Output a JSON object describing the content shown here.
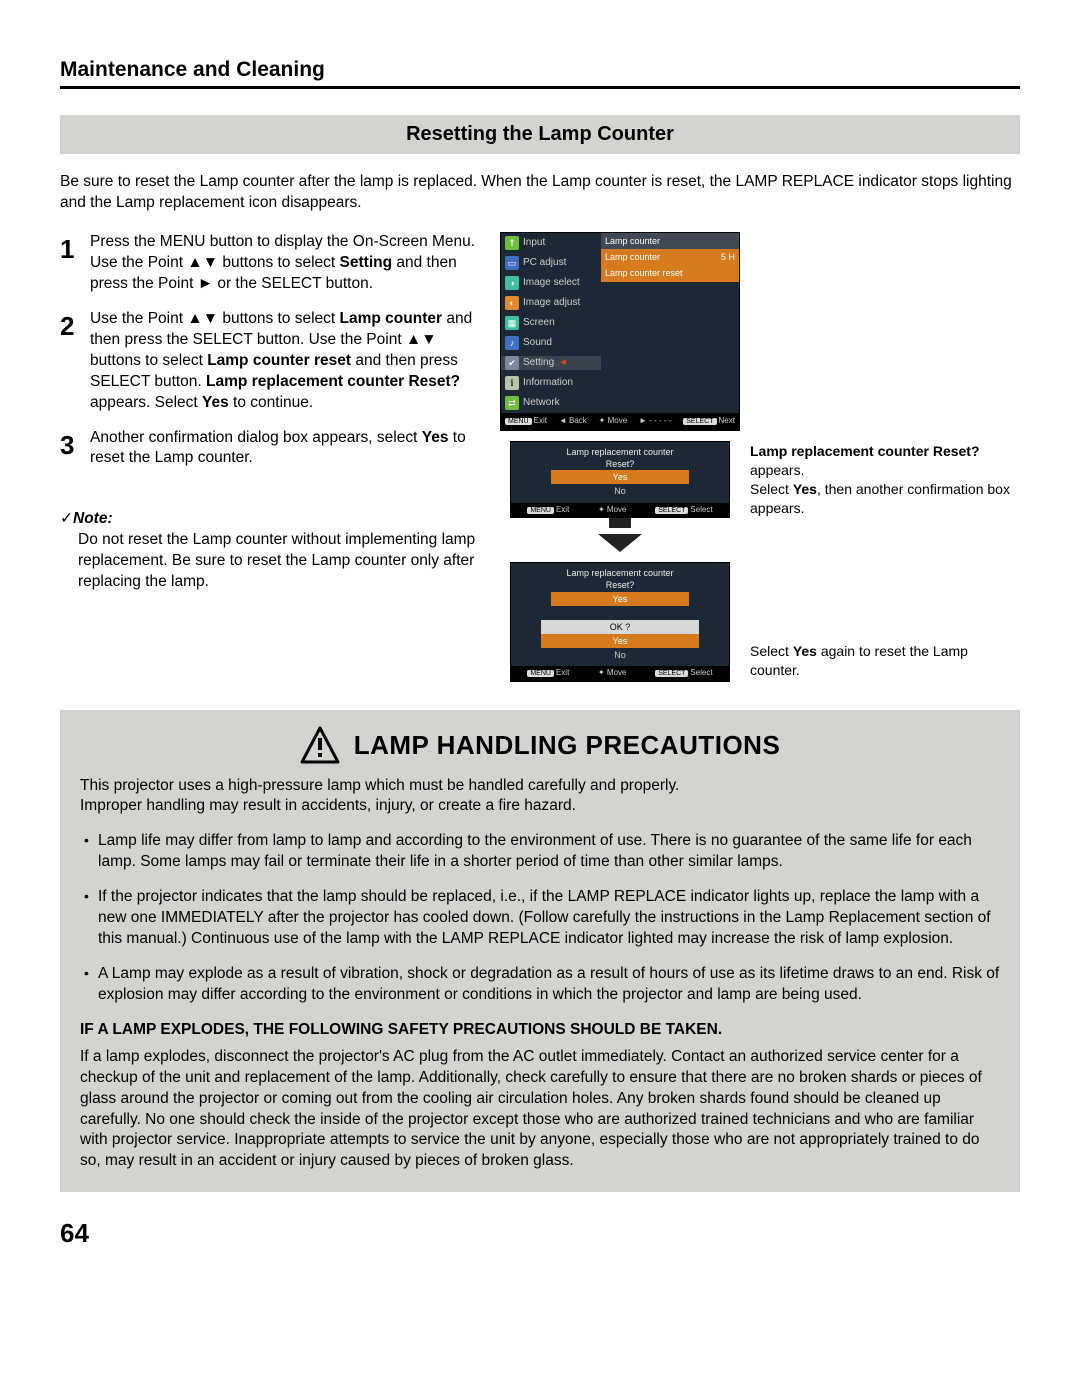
{
  "page": {
    "section": "Maintenance and Cleaning",
    "subsection": "Resetting the Lamp Counter",
    "intro": "Be sure to reset the Lamp counter after the lamp is replaced. When the Lamp counter is reset, the LAMP REPLACE indicator stops lighting and the Lamp replacement icon disappears.",
    "pageNumber": "64"
  },
  "steps": [
    {
      "n": "1",
      "text_pre": "Press the MENU button to display the On-Screen Menu. Use the Point ▲▼ buttons to select ",
      "bold1": "Setting",
      "text_post": " and then press the Point ► or the SELECT button."
    },
    {
      "n": "2",
      "text_pre": "Use the Point ▲▼ buttons to select ",
      "bold1": "Lamp counter",
      "text_mid1": " and then press the SELECT button. Use the Point ▲▼ buttons to select ",
      "bold2": "Lamp counter reset",
      "text_mid2": " and then press SELECT button. ",
      "bold3": "Lamp replacement counter Reset?",
      "text_mid3": " appears. Select ",
      "bold4": "Yes",
      "text_post": " to continue."
    },
    {
      "n": "3",
      "text_pre": "Another confirmation dialog box appears, select ",
      "bold1": "Yes",
      "text_post": " to reset the Lamp counter."
    }
  ],
  "note": {
    "label": "Note:",
    "body": "Do not reset the Lamp counter without implementing lamp replacement. Be sure to reset the Lamp counter only after replacing the lamp."
  },
  "osd": {
    "subhead": "Lamp counter",
    "items": [
      {
        "icon": "ic-green",
        "glyph": "⇑",
        "label": "Input"
      },
      {
        "icon": "ic-blue",
        "glyph": "▭",
        "label": "PC adjust"
      },
      {
        "icon": "ic-teal",
        "glyph": "◑",
        "label": "Image select"
      },
      {
        "icon": "ic-orange",
        "glyph": "◐",
        "label": "Image adjust"
      },
      {
        "icon": "ic-teal",
        "glyph": "▦",
        "label": "Screen"
      },
      {
        "icon": "ic-blue",
        "glyph": "♪",
        "label": "Sound"
      },
      {
        "icon": "ic-gray",
        "glyph": "✔",
        "label": "Setting",
        "selected": true
      },
      {
        "icon": "ic-pale",
        "glyph": "ℹ",
        "label": "Information"
      },
      {
        "icon": "ic-green",
        "glyph": "⇄",
        "label": "Network"
      }
    ],
    "right_rows": {
      "counter_label": "Lamp counter",
      "counter_value": "5 H",
      "reset_label": "Lamp counter reset"
    },
    "footer": {
      "exit_badge": "MENU",
      "exit": "Exit",
      "back": "◄ Back",
      "move": "✦ Move",
      "dash": "► - - - - -",
      "next_badge": "SELECT",
      "next": "Next"
    }
  },
  "dlg1": {
    "title1": "Lamp replacement counter",
    "title2": "Reset?",
    "yes": "Yes",
    "no": "No",
    "foot_exit_badge": "MENU",
    "foot_exit": "Exit",
    "foot_move": "✦ Move",
    "foot_sel_badge": "SELECT",
    "foot_sel": "Select"
  },
  "dlg2": {
    "title1": "Lamp replacement counter",
    "title2": "Reset?",
    "yes": "Yes",
    "ok": "OK ?",
    "no": "No",
    "foot_exit_badge": "MENU",
    "foot_exit": "Exit",
    "foot_move": "✦ Move",
    "foot_sel_badge": "SELECT",
    "foot_sel": "Select"
  },
  "captions": {
    "c1_bold": "Lamp replacement counter Reset?",
    "c1_tail": " appears.",
    "c1_line2a": "Select ",
    "c1_line2b": "Yes",
    "c1_line2c": ", then another confirmation box appears.",
    "c2a": "Select ",
    "c2b": "Yes",
    "c2c": " again to reset the Lamp counter."
  },
  "precautions": {
    "title": "LAMP HANDLING PRECAUTIONS",
    "intro1": "This projector uses a high-pressure lamp which must be handled carefully and properly.",
    "intro2": "Improper handling may result in accidents, injury, or create a fire hazard.",
    "bullets": [
      "Lamp life may differ from lamp to lamp and according to the environment of use. There is no guarantee of the same life for each lamp. Some lamps may fail or terminate their life in a shorter period of time than other similar lamps.",
      "If the projector indicates that the lamp should be replaced, i.e., if the LAMP REPLACE indicator lights up, replace the lamp with a new one IMMEDIATELY after the projector has cooled down.\n(Follow carefully the instructions in the Lamp Replacement section of this manual.) Continuous use of the lamp with the LAMP REPLACE indicator lighted may increase the risk of lamp explosion.",
      "A Lamp may explode as a result of vibration, shock or degradation as a result of hours of use as its lifetime draws to an end. Risk of explosion may differ according to the environment or conditions in which the projector and lamp are being used."
    ],
    "subhead": "IF A LAMP EXPLODES, THE FOLLOWING SAFETY PRECAUTIONS SHOULD BE TAKEN.",
    "subbody": "If a lamp explodes, disconnect the projector's AC plug from the AC outlet immediately. Contact an authorized service center for a checkup of the unit and replacement of the lamp. Additionally, check carefully to ensure that there are no broken shards or pieces of glass around the projector or coming out from the cooling air circulation holes. Any broken shards found should be cleaned up carefully. No one should check the inside of the projector except those who are authorized trained technicians and who are familiar with projector service. Inappropriate attempts to service the unit by anyone, especially those who are not appropriately trained to do so, may result in an accident or injury caused by pieces of broken glass."
  }
}
